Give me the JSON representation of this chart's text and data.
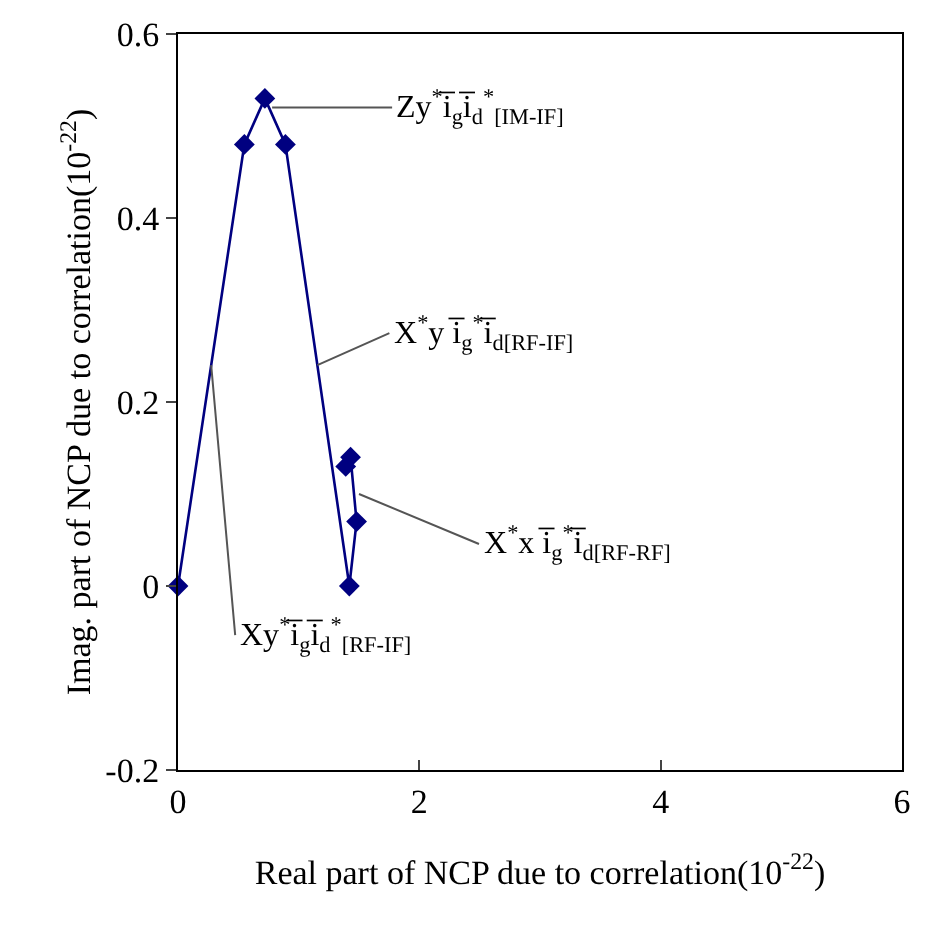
{
  "chart_data": {
    "type": "line",
    "xlabel": "Real part of NCP due to correlation(10$^{-22}$)",
    "ylabel": "Imag. part of NCP due to correlation(10$^{-22}$)",
    "x": [
      0,
      0.55,
      0.72,
      0.89,
      1.42,
      1.48,
      1.43,
      1.39
    ],
    "series": [
      {
        "color": "#000080",
        "values": [
          0,
          0.48,
          0.53,
          0.48,
          0,
          0.07,
          0.14,
          0.13
        ]
      }
    ],
    "xlim": [
      0,
      6
    ],
    "xticks": [
      0,
      2,
      4,
      6
    ],
    "ylim": [
      -0.2,
      0.6
    ],
    "yticks": [
      -0.2,
      0,
      0.2,
      0.4,
      0.6
    ],
    "grid": false,
    "marker": "diamond",
    "line_style": "solid",
    "annotations": [
      {
        "text": "Zy$^{*}$i̅$_{g}$i̅$_{d}$$^{*}$$_{[IM-IF]}$",
        "x": 0.78,
        "y": 0.52
      },
      {
        "text": "X$^{*}$y i̅$_{g}$$^{*}$i̅$_{d[RF-IF]}$",
        "x": 1.155,
        "y": 0.24
      },
      {
        "text": "X$^{*}$x i̅$_{g}$$^{*}$i̅$_{d[RF-RF]}$",
        "x": 1.5,
        "y": 0.1
      },
      {
        "text": "Xy$^{*}$i̅$_{g}$i̅$_{d}$$^{*}$$_{[RF-IF]}$",
        "x": 0.275,
        "y": 0.24
      }
    ]
  }
}
